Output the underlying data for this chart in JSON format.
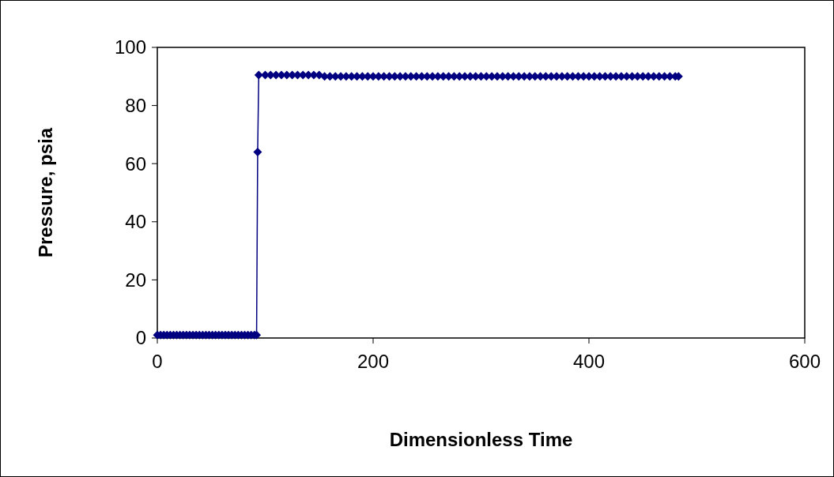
{
  "chart_data": {
    "type": "line",
    "xlabel": "Dimensionless Time",
    "ylabel": "Pressure, psia",
    "xlim": [
      0,
      600
    ],
    "xticks": [
      0,
      200,
      400,
      600
    ],
    "ylim": [
      0,
      100
    ],
    "yticks": [
      0,
      20,
      40,
      60,
      80,
      100
    ],
    "marker": "diamond",
    "line_style": "solid",
    "series": [
      {
        "color": "#000080",
        "x": [
          0,
          3,
          6,
          9,
          12,
          15,
          18,
          21,
          24,
          27,
          30,
          33,
          36,
          39,
          42,
          45,
          48,
          51,
          54,
          57,
          60,
          63,
          66,
          69,
          72,
          75,
          78,
          81,
          84,
          87,
          90,
          92,
          93,
          94,
          100,
          105,
          110,
          115,
          120,
          125,
          130,
          135,
          140,
          145,
          150,
          155,
          160,
          165,
          170,
          175,
          180,
          185,
          190,
          195,
          200,
          205,
          210,
          215,
          220,
          225,
          230,
          235,
          240,
          245,
          250,
          255,
          260,
          265,
          270,
          275,
          280,
          285,
          290,
          295,
          300,
          305,
          310,
          315,
          320,
          325,
          330,
          335,
          340,
          345,
          350,
          355,
          360,
          365,
          370,
          375,
          380,
          385,
          390,
          395,
          400,
          405,
          410,
          415,
          420,
          425,
          430,
          435,
          440,
          445,
          450,
          455,
          460,
          465,
          470,
          475,
          480,
          483
        ],
        "values": [
          1,
          1,
          1,
          1,
          1,
          1,
          1,
          1,
          1,
          1,
          1,
          1,
          1,
          1,
          1,
          1,
          1,
          1,
          1,
          1,
          1,
          1,
          1,
          1,
          1,
          1,
          1,
          1,
          1,
          1,
          1,
          1,
          64,
          90.5,
          90.5,
          90.5,
          90.5,
          90.5,
          90.5,
          90.5,
          90.5,
          90.5,
          90.5,
          90.5,
          90.5,
          90,
          90,
          90,
          90,
          90,
          90,
          90,
          90,
          90,
          90,
          90,
          90,
          90,
          90,
          90,
          90,
          90,
          90,
          90,
          90,
          90,
          90,
          90,
          90,
          90,
          90,
          90,
          90,
          90,
          90,
          90,
          90,
          90,
          90,
          90,
          90,
          90,
          90,
          90,
          90,
          90,
          90,
          90,
          90,
          90,
          90,
          90,
          90,
          90,
          90,
          90,
          90,
          90,
          90,
          90,
          90,
          90,
          90,
          90,
          90,
          90,
          90,
          90,
          90,
          90,
          90,
          90
        ]
      }
    ]
  }
}
